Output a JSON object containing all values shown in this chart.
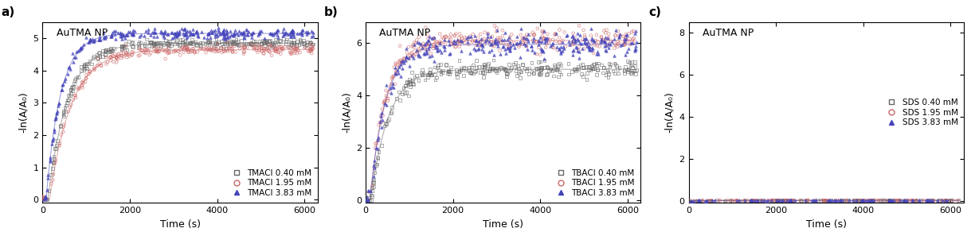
{
  "panels": [
    {
      "label": "a)",
      "title": "AuTMA NP",
      "xlabel": "Time (s)",
      "ylabel": "-ln(A/A₀)",
      "xlim": [
        0,
        6300
      ],
      "ylim": [
        -0.1,
        5.5
      ],
      "yticks": [
        0,
        1,
        2,
        3,
        4,
        5
      ],
      "xticks": [
        0,
        2000,
        4000,
        6000
      ],
      "legend_loc": "lower right",
      "series": [
        {
          "label": "TMACl 0.40 mM",
          "color": "#666666",
          "marker": "s",
          "plateau": 4.85,
          "k": 0.0022,
          "lag": 120,
          "noise": 0.06,
          "n_points": 300,
          "filled": false
        },
        {
          "label": "TMACl 1.95 mM",
          "color": "#cc6666",
          "marker": "o",
          "plateau": 4.65,
          "k": 0.002,
          "lag": 160,
          "noise": 0.07,
          "n_points": 300,
          "filled": false
        },
        {
          "label": "TMACl 3.83 mM",
          "color": "#4444bb",
          "marker": "^",
          "plateau": 5.15,
          "k": 0.003,
          "lag": 80,
          "noise": 0.07,
          "n_points": 300,
          "filled": true
        }
      ]
    },
    {
      "label": "b)",
      "title": "AuTMA NP",
      "xlabel": "Time (s)",
      "ylabel": "-ln(A/A₀)",
      "xlim": [
        0,
        6300
      ],
      "ylim": [
        -0.1,
        6.8
      ],
      "yticks": [
        0,
        2,
        4,
        6
      ],
      "xticks": [
        0,
        2000,
        4000,
        6000
      ],
      "legend_loc": "lower right",
      "series": [
        {
          "label": "TBACl 0.40 mM",
          "color": "#666666",
          "marker": "s",
          "plateau": 5.0,
          "k": 0.0025,
          "lag": 120,
          "noise": 0.14,
          "n_points": 300,
          "filled": false
        },
        {
          "label": "TBACl 1.95 mM",
          "color": "#cc6666",
          "marker": "o",
          "plateau": 6.1,
          "k": 0.0028,
          "lag": 100,
          "noise": 0.2,
          "n_points": 300,
          "filled": false
        },
        {
          "label": "TBACl 3.83 mM",
          "color": "#4444bb",
          "marker": "^",
          "plateau": 5.95,
          "k": 0.0028,
          "lag": 100,
          "noise": 0.22,
          "n_points": 300,
          "filled": true
        }
      ]
    },
    {
      "label": "c)",
      "title": "AuTMA NP",
      "xlabel": "Time (s)",
      "ylabel": "-ln(A/A₀)",
      "xlim": [
        0,
        6300
      ],
      "ylim": [
        -0.1,
        8.5
      ],
      "yticks": [
        0,
        2,
        4,
        6,
        8
      ],
      "xticks": [
        0,
        2000,
        4000,
        6000
      ],
      "legend_loc": "center right",
      "series": [
        {
          "label": "SDS 0.40 mM",
          "color": "#666666",
          "marker": "s",
          "plateau": 0.015,
          "k": 0.001,
          "lag": 0,
          "noise": 0.004,
          "n_points": 100,
          "filled": false
        },
        {
          "label": "SDS 1.95 mM",
          "color": "#cc6666",
          "marker": "o",
          "plateau": 0.015,
          "k": 0.001,
          "lag": 0,
          "noise": 0.004,
          "n_points": 100,
          "filled": false
        },
        {
          "label": "SDS 3.83 mM",
          "color": "#4444bb",
          "marker": "^",
          "plateau": 0.015,
          "k": 0.001,
          "lag": 0,
          "noise": 0.004,
          "n_points": 100,
          "filled": true
        }
      ]
    }
  ],
  "figure_width": 12.19,
  "figure_height": 2.97,
  "dpi": 100
}
